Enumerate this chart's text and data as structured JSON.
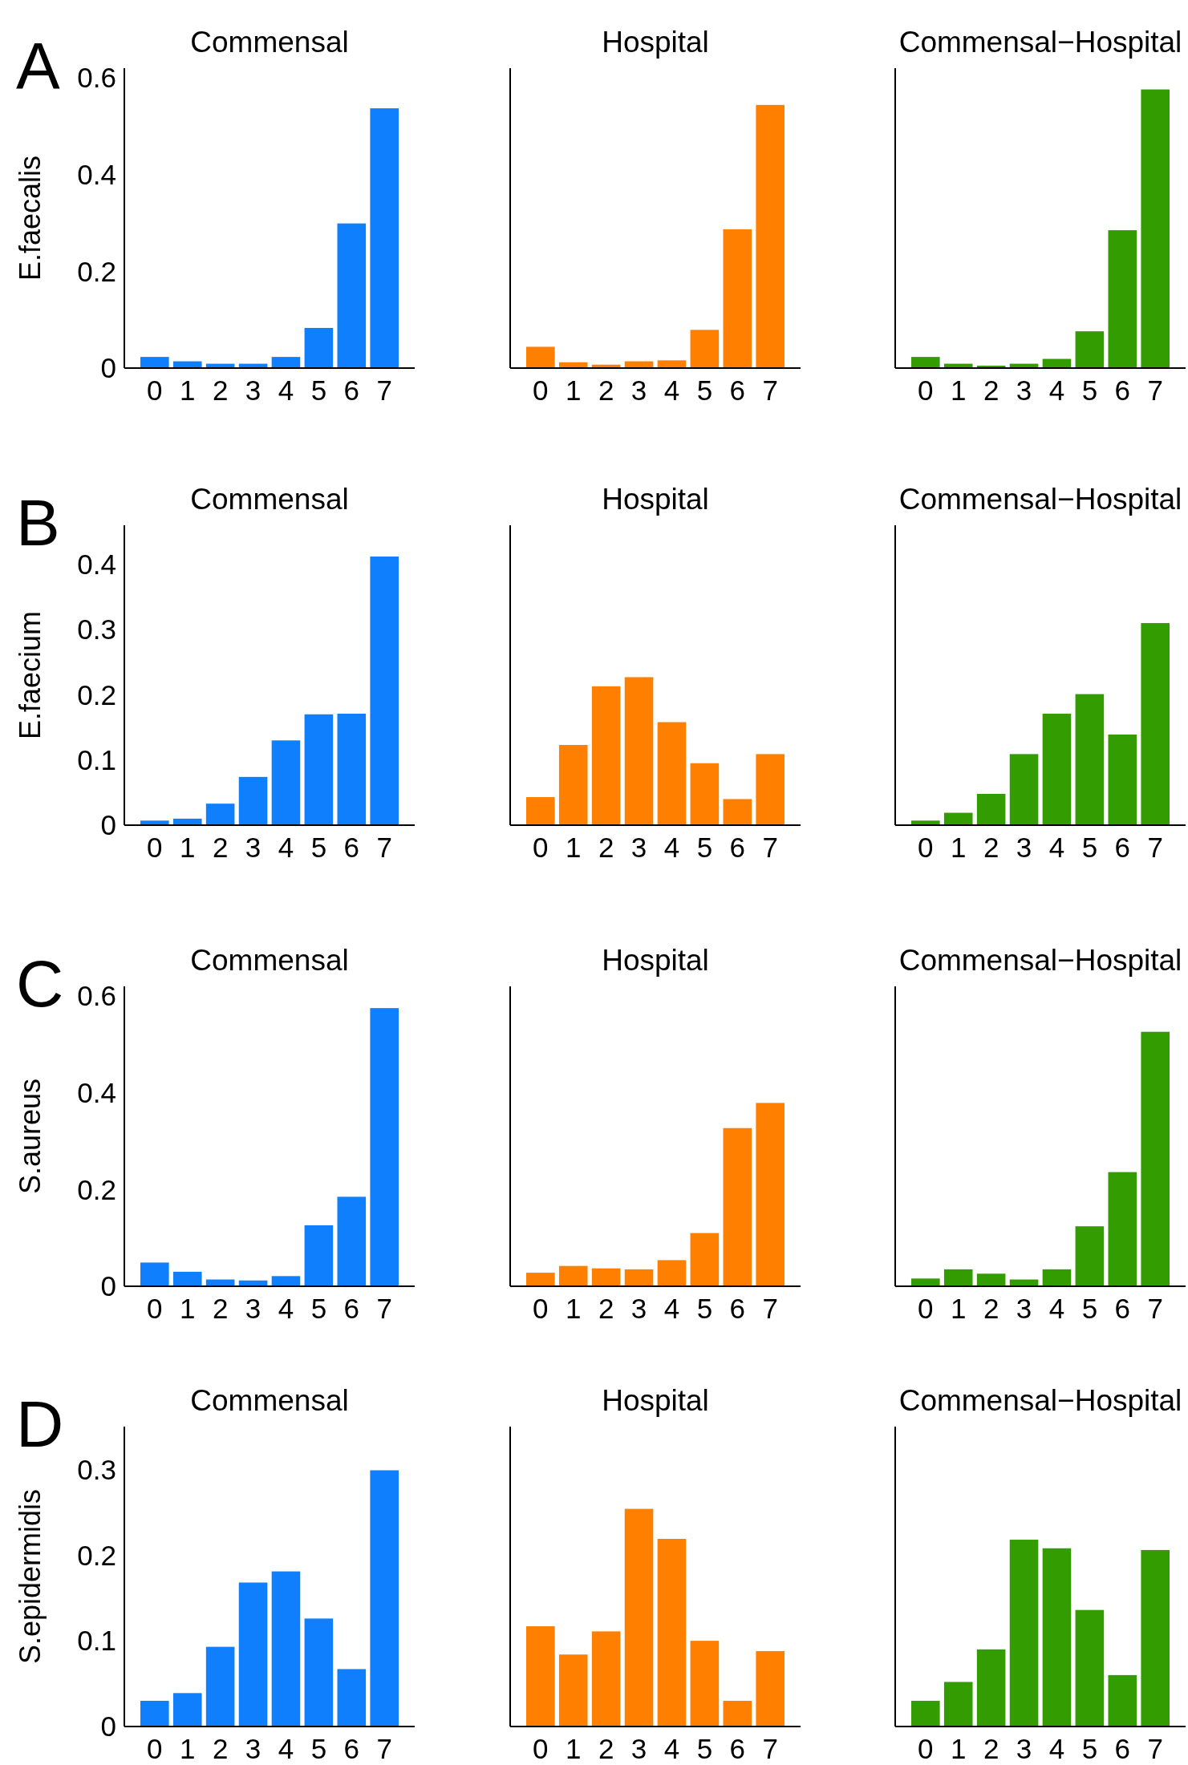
{
  "chart_data": [
    {
      "type": "bar",
      "title": "Commensal",
      "ylabel": "E.faecalis",
      "annotations": [
        "A"
      ],
      "categories": [
        "0",
        "1",
        "2",
        "3",
        "4",
        "5",
        "6",
        "7"
      ],
      "values": [
        0.023,
        0.014,
        0.009,
        0.009,
        0.023,
        0.083,
        0.299,
        0.537
      ],
      "color": "#0f7ffe",
      "ylim": [
        0,
        0.62
      ],
      "yticks": [
        0,
        0.2,
        0.4,
        0.6
      ]
    },
    {
      "type": "bar",
      "title": "Hospital",
      "categories": [
        "0",
        "1",
        "2",
        "3",
        "4",
        "5",
        "6",
        "7"
      ],
      "values": [
        0.044,
        0.012,
        0.007,
        0.014,
        0.016,
        0.079,
        0.287,
        0.544
      ],
      "color": "#ff7f00",
      "ylim": [
        0,
        0.62
      ],
      "tick_labels": "x"
    },
    {
      "type": "bar",
      "title": "Commensal−Hospital",
      "categories": [
        "0",
        "1",
        "2",
        "3",
        "4",
        "5",
        "6",
        "7"
      ],
      "values": [
        0.023,
        0.009,
        0.005,
        0.009,
        0.019,
        0.076,
        0.285,
        0.576
      ],
      "color": "#339c00",
      "ylim": [
        0,
        0.62
      ],
      "tick_labels": "x"
    },
    {
      "type": "bar",
      "title": "Commensal",
      "ylabel": "E.faecium",
      "annotations": [
        "B"
      ],
      "categories": [
        "0",
        "1",
        "2",
        "3",
        "4",
        "5",
        "6",
        "7"
      ],
      "values": [
        0.007,
        0.01,
        0.033,
        0.074,
        0.13,
        0.17,
        0.171,
        0.412
      ],
      "color": "#0f7ffe",
      "ylim": [
        0,
        0.46
      ],
      "yticks": [
        0,
        0.1,
        0.2,
        0.3,
        0.4
      ]
    },
    {
      "type": "bar",
      "title": "Hospital",
      "categories": [
        "0",
        "1",
        "2",
        "3",
        "4",
        "5",
        "6",
        "7"
      ],
      "values": [
        0.043,
        0.123,
        0.213,
        0.227,
        0.158,
        0.095,
        0.04,
        0.109
      ],
      "color": "#ff7f00",
      "ylim": [
        0,
        0.46
      ],
      "tick_labels": "x"
    },
    {
      "type": "bar",
      "title": "Commensal−Hospital",
      "categories": [
        "0",
        "1",
        "2",
        "3",
        "4",
        "5",
        "6",
        "7"
      ],
      "values": [
        0.007,
        0.019,
        0.048,
        0.109,
        0.171,
        0.201,
        0.139,
        0.31
      ],
      "color": "#339c00",
      "ylim": [
        0,
        0.46
      ],
      "tick_labels": "x"
    },
    {
      "type": "bar",
      "title": "Commensal",
      "ylabel": "S.aureus",
      "annotations": [
        "C"
      ],
      "categories": [
        "0",
        "1",
        "2",
        "3",
        "4",
        "5",
        "6",
        "7"
      ],
      "values": [
        0.049,
        0.03,
        0.014,
        0.012,
        0.021,
        0.126,
        0.185,
        0.575
      ],
      "color": "#0f7ffe",
      "ylim": [
        0,
        0.62
      ],
      "yticks": [
        0,
        0.2,
        0.4,
        0.6
      ]
    },
    {
      "type": "bar",
      "title": "Hospital",
      "categories": [
        "0",
        "1",
        "2",
        "3",
        "4",
        "5",
        "6",
        "7"
      ],
      "values": [
        0.028,
        0.042,
        0.037,
        0.035,
        0.054,
        0.11,
        0.327,
        0.379
      ],
      "color": "#ff7f00",
      "ylim": [
        0,
        0.62
      ],
      "tick_labels": "x"
    },
    {
      "type": "bar",
      "title": "Commensal−Hospital",
      "categories": [
        "0",
        "1",
        "2",
        "3",
        "4",
        "5",
        "6",
        "7"
      ],
      "values": [
        0.016,
        0.035,
        0.026,
        0.014,
        0.035,
        0.124,
        0.236,
        0.526
      ],
      "color": "#339c00",
      "ylim": [
        0,
        0.62
      ],
      "tick_labels": "x"
    },
    {
      "type": "bar",
      "title": "Commensal",
      "ylabel": "S.epidermidis",
      "annotations": [
        "D"
      ],
      "categories": [
        "0",
        "1",
        "2",
        "3",
        "4",
        "5",
        "6",
        "7"
      ],
      "values": [
        0.03,
        0.039,
        0.093,
        0.168,
        0.181,
        0.126,
        0.067,
        0.299
      ],
      "color": "#0f7ffe",
      "ylim": [
        0,
        0.35
      ],
      "yticks": [
        0,
        0.1,
        0.2,
        0.3
      ]
    },
    {
      "type": "bar",
      "title": "Hospital",
      "categories": [
        "0",
        "1",
        "2",
        "3",
        "4",
        "5",
        "6",
        "7"
      ],
      "values": [
        0.117,
        0.084,
        0.111,
        0.254,
        0.219,
        0.1,
        0.03,
        0.088
      ],
      "color": "#ff7f00",
      "ylim": [
        0,
        0.35
      ],
      "tick_labels": "x"
    },
    {
      "type": "bar",
      "title": "Commensal−Hospital",
      "categories": [
        "0",
        "1",
        "2",
        "3",
        "4",
        "5",
        "6",
        "7"
      ],
      "values": [
        0.03,
        0.052,
        0.09,
        0.218,
        0.208,
        0.136,
        0.06,
        0.206
      ],
      "color": "#339c00",
      "ylim": [
        0,
        0.35
      ],
      "tick_labels": "x"
    }
  ]
}
